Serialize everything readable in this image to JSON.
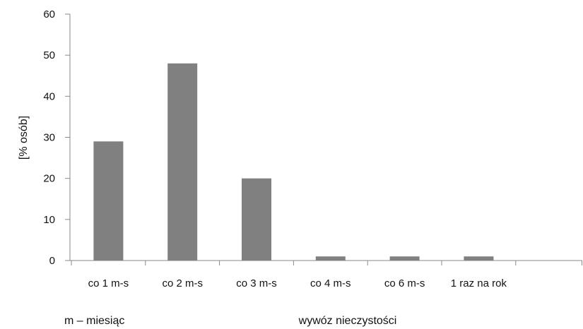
{
  "chart_data": {
    "type": "bar",
    "categories": [
      "co 1 m-s",
      "co 2 m-s",
      "co 3 m-s",
      "co 4 m-s",
      "co 6 m-s",
      "1 raz na rok",
      ""
    ],
    "values": [
      29,
      48,
      20,
      1,
      1,
      1,
      null
    ],
    "ylabel": "[% osób]",
    "xlabel": "wywóz nieczystości",
    "ylim": [
      0,
      60
    ],
    "yticks": [
      0,
      10,
      20,
      30,
      40,
      50,
      60
    ],
    "grid": false,
    "bar_color": "#808080",
    "axis_color": "#8a8a8a",
    "legend": "none"
  },
  "footnote": "m – miesiąc"
}
